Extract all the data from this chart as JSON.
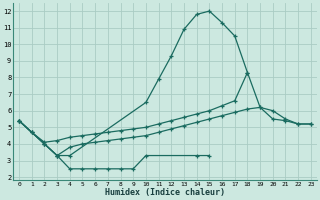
{
  "xlabel": "Humidex (Indice chaleur)",
  "bg_color": "#cce8e0",
  "grid_color": "#aaccc4",
  "line_color": "#1a6b60",
  "xlim": [
    -0.5,
    23.5
  ],
  "ylim": [
    1.8,
    12.5
  ],
  "xticks": [
    0,
    1,
    2,
    3,
    4,
    5,
    6,
    7,
    8,
    9,
    10,
    11,
    12,
    13,
    14,
    15,
    16,
    17,
    18,
    19,
    20,
    21,
    22,
    23
  ],
  "yticks": [
    2,
    3,
    4,
    5,
    6,
    7,
    8,
    9,
    10,
    11,
    12
  ],
  "line1_x": [
    0,
    1,
    2,
    3,
    4,
    10,
    11,
    12,
    13,
    14,
    15,
    16,
    17,
    18
  ],
  "line1_y": [
    5.4,
    4.7,
    4.0,
    3.3,
    3.3,
    6.5,
    7.9,
    9.3,
    10.9,
    11.8,
    12.0,
    11.3,
    10.5,
    8.3
  ],
  "line2_x": [
    0,
    1,
    2,
    3,
    4,
    5,
    6,
    7,
    8,
    9,
    10,
    11,
    12,
    13,
    14,
    15,
    16,
    17,
    18,
    19,
    20,
    21,
    22,
    23
  ],
  "line2_y": [
    5.4,
    4.7,
    4.1,
    4.2,
    4.4,
    4.5,
    4.6,
    4.7,
    4.8,
    4.9,
    5.0,
    5.2,
    5.4,
    5.6,
    5.8,
    6.0,
    6.3,
    6.6,
    8.3,
    6.2,
    5.5,
    5.4,
    5.2,
    5.2
  ],
  "line3_x": [
    0,
    2,
    3,
    4,
    5,
    6,
    7,
    8,
    9,
    10,
    14,
    15
  ],
  "line3_y": [
    5.4,
    4.0,
    3.3,
    2.5,
    2.5,
    2.5,
    2.5,
    2.5,
    2.5,
    3.3,
    3.3,
    3.3
  ],
  "line4_x": [
    0,
    1,
    2,
    3,
    4,
    5,
    6,
    7,
    8,
    9,
    10,
    11,
    12,
    13,
    14,
    15,
    16,
    17,
    18,
    19,
    20,
    21,
    22,
    23
  ],
  "line4_y": [
    5.4,
    4.7,
    4.0,
    3.3,
    3.8,
    4.0,
    4.1,
    4.2,
    4.3,
    4.4,
    4.5,
    4.7,
    4.9,
    5.1,
    5.3,
    5.5,
    5.7,
    5.9,
    6.1,
    6.2,
    6.0,
    5.5,
    5.2,
    5.2
  ]
}
